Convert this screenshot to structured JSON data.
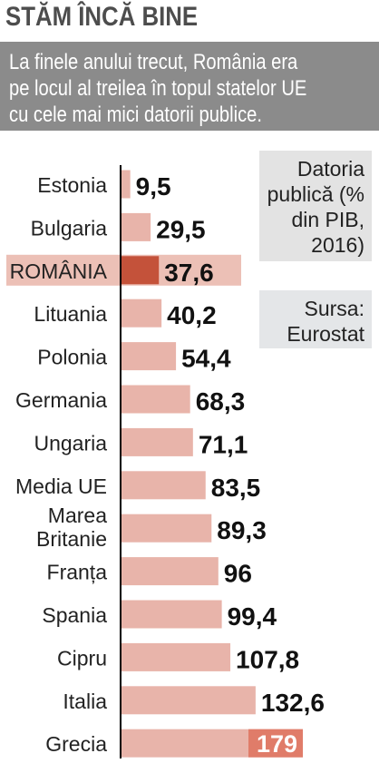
{
  "header": {
    "title": "STĂM ÎNCĂ BINE",
    "subtitle": "La finele anului trecut, România era\npe locul al treilea în topul statelor UE\ncu cele mai mici datorii publice."
  },
  "legend": {
    "measure": "Datoria publică (% din PIB, 2016)",
    "measure_lines": [
      "Datoria",
      "publică (%",
      "din PIB,",
      "2016)"
    ],
    "source": "Sursa: Eurostat",
    "source_lines": [
      "Sursa:",
      "Eurostat"
    ]
  },
  "colors": {
    "bar": "#e8b4aa",
    "highlight_bar": "#c4523a",
    "highlight_bg": "#ecc0b6",
    "greece_bar": "#e07c69",
    "header_bg": "#8b8b8b",
    "title": "#4d4d4d",
    "axis": "#000000"
  },
  "chart_data": {
    "type": "bar",
    "orientation": "horizontal",
    "title": "STĂM ÎNCĂ BINE",
    "subtitle": "La finele anului trecut, România era pe locul al treilea în topul statelor UE cu cele mai mici datorii publice.",
    "categories": [
      "Estonia",
      "Bulgaria",
      "ROMÂNIA",
      "Lituania",
      "Polonia",
      "Germania",
      "Ungaria",
      "Media UE",
      "Marea Britanie",
      "Franța",
      "Spania",
      "Cipru",
      "Italia",
      "Grecia"
    ],
    "values": [
      9.5,
      29.5,
      37.6,
      40.2,
      54.4,
      68.3,
      71.1,
      83.5,
      89.3,
      96,
      99.4,
      107.8,
      132.6,
      179
    ],
    "value_labels": [
      "9,5",
      "29,5",
      "37,6",
      "40,2",
      "54,4",
      "68,3",
      "71,1",
      "83,5",
      "89,3",
      "96",
      "99,4",
      "107,8",
      "132,6",
      "179"
    ],
    "highlight": "ROMÂNIA",
    "xlim": [
      0,
      179
    ],
    "grid": false,
    "xlabel": "",
    "ylabel": "Datoria publică (% din PIB, 2016)",
    "source": "Sursa: Eurostat"
  }
}
